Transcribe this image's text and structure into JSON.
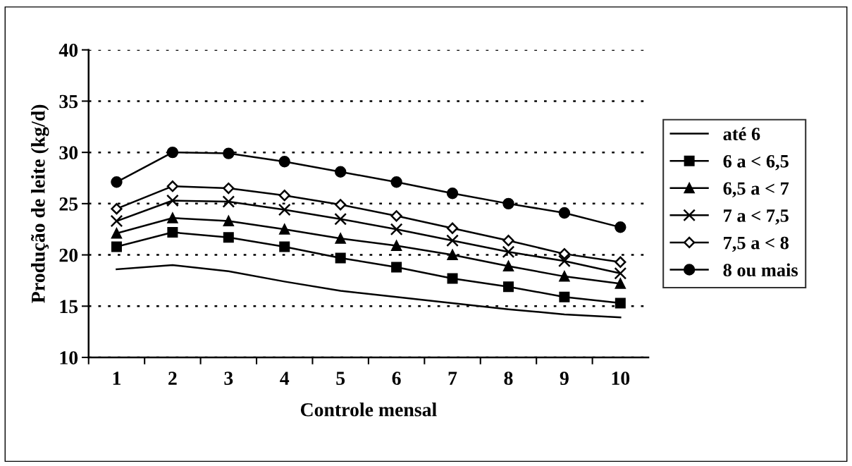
{
  "chart_data": {
    "type": "line",
    "xlabel": "Controle mensal",
    "ylabel": "Produção de leite (kg/d)",
    "categories": [
      "1",
      "2",
      "3",
      "4",
      "5",
      "6",
      "7",
      "8",
      "9",
      "10"
    ],
    "ylim": [
      10,
      40
    ],
    "yticks": [
      10,
      15,
      20,
      25,
      30,
      35,
      40
    ],
    "grid": "y",
    "legend": "right",
    "series": [
      {
        "name": "até 6",
        "color": "#000000",
        "marker": "none",
        "values": [
          18.6,
          19.0,
          18.4,
          17.4,
          16.5,
          15.9,
          15.3,
          14.7,
          14.2,
          13.9
        ]
      },
      {
        "name": "6 a < 6,5",
        "color": "#000000",
        "marker": "square",
        "values": [
          20.8,
          22.2,
          21.7,
          20.8,
          19.7,
          18.8,
          17.7,
          16.9,
          15.9,
          15.3
        ]
      },
      {
        "name": "6,5 a < 7",
        "color": "#000000",
        "marker": "triangle",
        "values": [
          22.1,
          23.6,
          23.3,
          22.5,
          21.6,
          20.9,
          20.0,
          18.9,
          17.9,
          17.2
        ]
      },
      {
        "name": "7 a < 7,5",
        "color": "#000000",
        "marker": "cross",
        "values": [
          23.3,
          25.3,
          25.2,
          24.4,
          23.5,
          22.5,
          21.4,
          20.3,
          19.4,
          18.2
        ]
      },
      {
        "name": "7,5 a < 8",
        "color": "#000000",
        "marker": "diamond",
        "values": [
          24.5,
          26.7,
          26.5,
          25.8,
          24.9,
          23.8,
          22.6,
          21.4,
          20.1,
          19.3
        ]
      },
      {
        "name": "8 ou mais",
        "color": "#000000",
        "marker": "circle",
        "values": [
          27.1,
          30.0,
          29.9,
          29.1,
          28.1,
          27.1,
          26.0,
          25.0,
          24.1,
          22.7
        ]
      }
    ]
  }
}
